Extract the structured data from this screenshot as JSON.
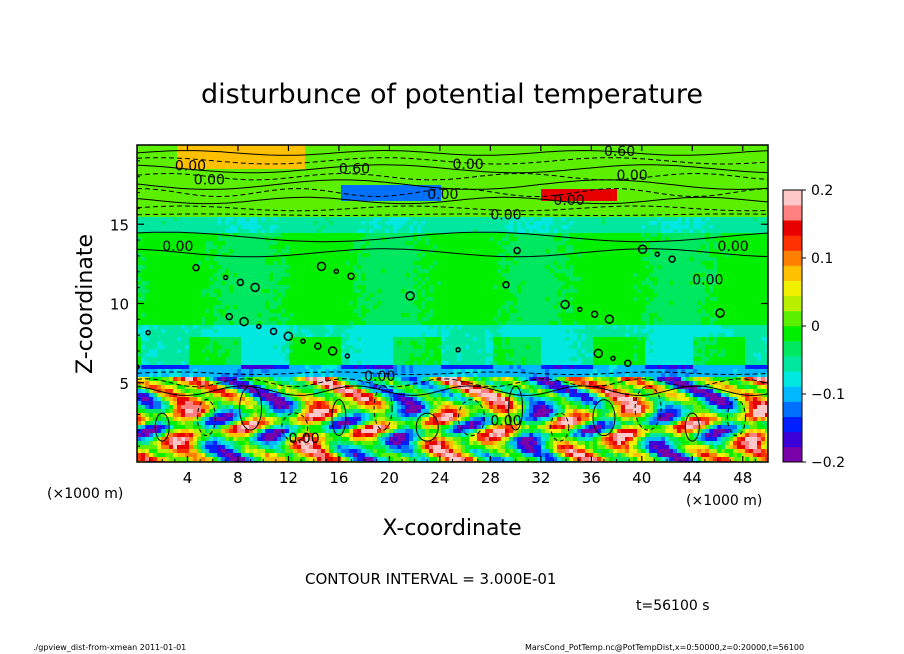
{
  "chart_data": {
    "type": "heatmap",
    "title": "disturbunce of potential temperature",
    "xlabel": "X-coordinate",
    "ylabel": "Z-coordinate",
    "x_unit": "(×1000 m)",
    "x_unit_right": "(×1000 m)",
    "xlim": [
      0,
      50
    ],
    "ylim": [
      0,
      20
    ],
    "x_ticks": [
      4,
      8,
      12,
      16,
      20,
      24,
      28,
      32,
      36,
      40,
      44,
      48
    ],
    "y_ticks": [
      5,
      10,
      15
    ],
    "colorbar": {
      "min": -0.2,
      "max": 0.2,
      "ticks": [
        "0.2",
        "0.1",
        "0",
        "−0.1",
        "−0.2"
      ],
      "tick_values": [
        0.2,
        0.1,
        0,
        -0.1,
        -0.2
      ],
      "colors": [
        "#7a00a8",
        "#3c00d8",
        "#0020ff",
        "#0070ff",
        "#00b8ff",
        "#00e8e0",
        "#00e8a0",
        "#00e860",
        "#00f000",
        "#5cf000",
        "#b8f000",
        "#f0f000",
        "#ffc000",
        "#ff8000",
        "#ff3000",
        "#e80000",
        "#ff8080",
        "#ffc8c8"
      ]
    },
    "contour_labels": [
      "0.00",
      "0.00",
      "0.60",
      "0.00",
      "0.00",
      "0.60",
      "0.00",
      "0.00",
      "0.00",
      "0.00",
      "0.00",
      "0.00",
      "0.00",
      "0.00",
      "0.00"
    ],
    "contour_interval_text": "CONTOUR INTERVAL = 3.000E-01",
    "time_text": "t=56100 s"
  },
  "footer": {
    "left": "./gpview_dist-from-xmean  2011-01-01",
    "right": "MarsCond_PotTemp.nc@PotTempDist,x=0:50000,z=0:20000,t=56100"
  }
}
